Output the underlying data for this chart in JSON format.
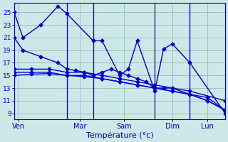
{
  "background_color": "#cce8e8",
  "grid_color": "#99bbbb",
  "line_color": "#0000cc",
  "marker": "D",
  "markersize": 2.5,
  "linewidth": 1.0,
  "xlabel": "Température (°c)",
  "xlabel_fontsize": 8,
  "yticks": [
    9,
    11,
    13,
    15,
    17,
    19,
    21,
    23,
    25
  ],
  "ylim": [
    8.0,
    26.5
  ],
  "xtick_positions": [
    0.5,
    7.5,
    12.5,
    18,
    22
  ],
  "xtick_labels": [
    "Ven",
    "Mar",
    "Sam",
    "Dim",
    "Lun"
  ],
  "vline_positions": [
    6,
    9,
    16,
    20
  ],
  "series": [
    {
      "x": [
        0,
        1,
        3,
        5,
        6,
        9,
        10,
        12,
        13,
        14,
        16,
        17,
        18,
        20,
        24
      ],
      "y": [
        25,
        21,
        23,
        26,
        24.8,
        20.5,
        20.5,
        15,
        16,
        20.5,
        12.5,
        19.2,
        20,
        17,
        9
      ]
    },
    {
      "x": [
        0,
        1,
        3,
        5,
        6,
        7,
        8,
        9,
        10,
        11,
        12,
        13,
        14,
        15,
        16,
        17,
        18,
        20,
        24
      ],
      "y": [
        21,
        19,
        18,
        17,
        16,
        15.8,
        15.5,
        15,
        15.5,
        16,
        15.5,
        15,
        14.5,
        14,
        13,
        13,
        13,
        12.5,
        11
      ]
    },
    {
      "x": [
        0,
        2,
        4,
        6,
        8,
        10,
        12,
        14,
        16,
        18,
        20,
        22,
        24
      ],
      "y": [
        15,
        15.2,
        15.3,
        15,
        14.8,
        14.5,
        14,
        13.5,
        13,
        12.5,
        12,
        11,
        9.5
      ]
    },
    {
      "x": [
        0,
        2,
        4,
        6,
        8,
        10,
        12,
        14,
        16,
        18,
        20,
        22,
        24
      ],
      "y": [
        15.5,
        15.5,
        15.5,
        15,
        15,
        14.5,
        14,
        13.5,
        13,
        12.5,
        12,
        11,
        9.5
      ]
    },
    {
      "x": [
        0,
        2,
        4,
        6,
        8,
        10,
        12,
        14,
        16,
        18,
        20,
        22,
        24
      ],
      "y": [
        16,
        16,
        16,
        15.5,
        15.5,
        15,
        14.5,
        14,
        13.5,
        13,
        12,
        11.5,
        9.5
      ]
    }
  ]
}
